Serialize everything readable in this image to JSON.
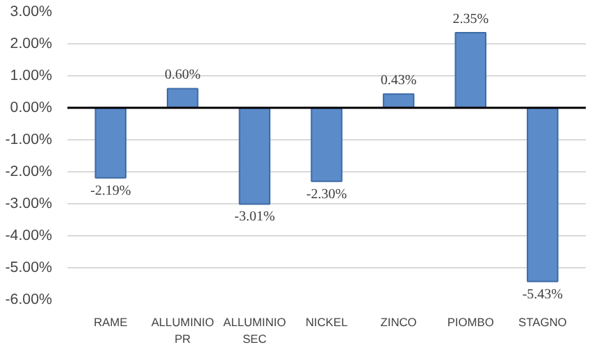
{
  "chart_data": {
    "type": "bar",
    "categories": [
      "RAME",
      "ALLUMINIO PR",
      "ALLUMINIO SEC",
      "NICKEL",
      "ZINCO",
      "PIOMBO",
      "STAGNO"
    ],
    "values": [
      -2.19,
      0.6,
      -3.01,
      -2.3,
      0.43,
      2.35,
      -5.43
    ],
    "value_labels": [
      "-2.19%",
      "0.60%",
      "-3.01%",
      "-2.30%",
      "0.43%",
      "2.35%",
      "-5.43%"
    ],
    "color": "#5b8bc9",
    "ylim": [
      -6,
      3
    ],
    "yticks": [
      {
        "value": -6,
        "label": "-6.00%"
      },
      {
        "value": -5,
        "label": "-5.00%"
      },
      {
        "value": -4,
        "label": "-4.00%"
      },
      {
        "value": -3,
        "label": "-3.00%"
      },
      {
        "value": -2,
        "label": "-2.00%"
      },
      {
        "value": -1,
        "label": "-1.00%"
      },
      {
        "value": 0,
        "label": "0.00%"
      },
      {
        "value": 1,
        "label": "1.00%"
      },
      {
        "value": 2,
        "label": "2.00%"
      },
      {
        "value": 3,
        "label": "3.00%"
      }
    ],
    "grid": "y"
  }
}
